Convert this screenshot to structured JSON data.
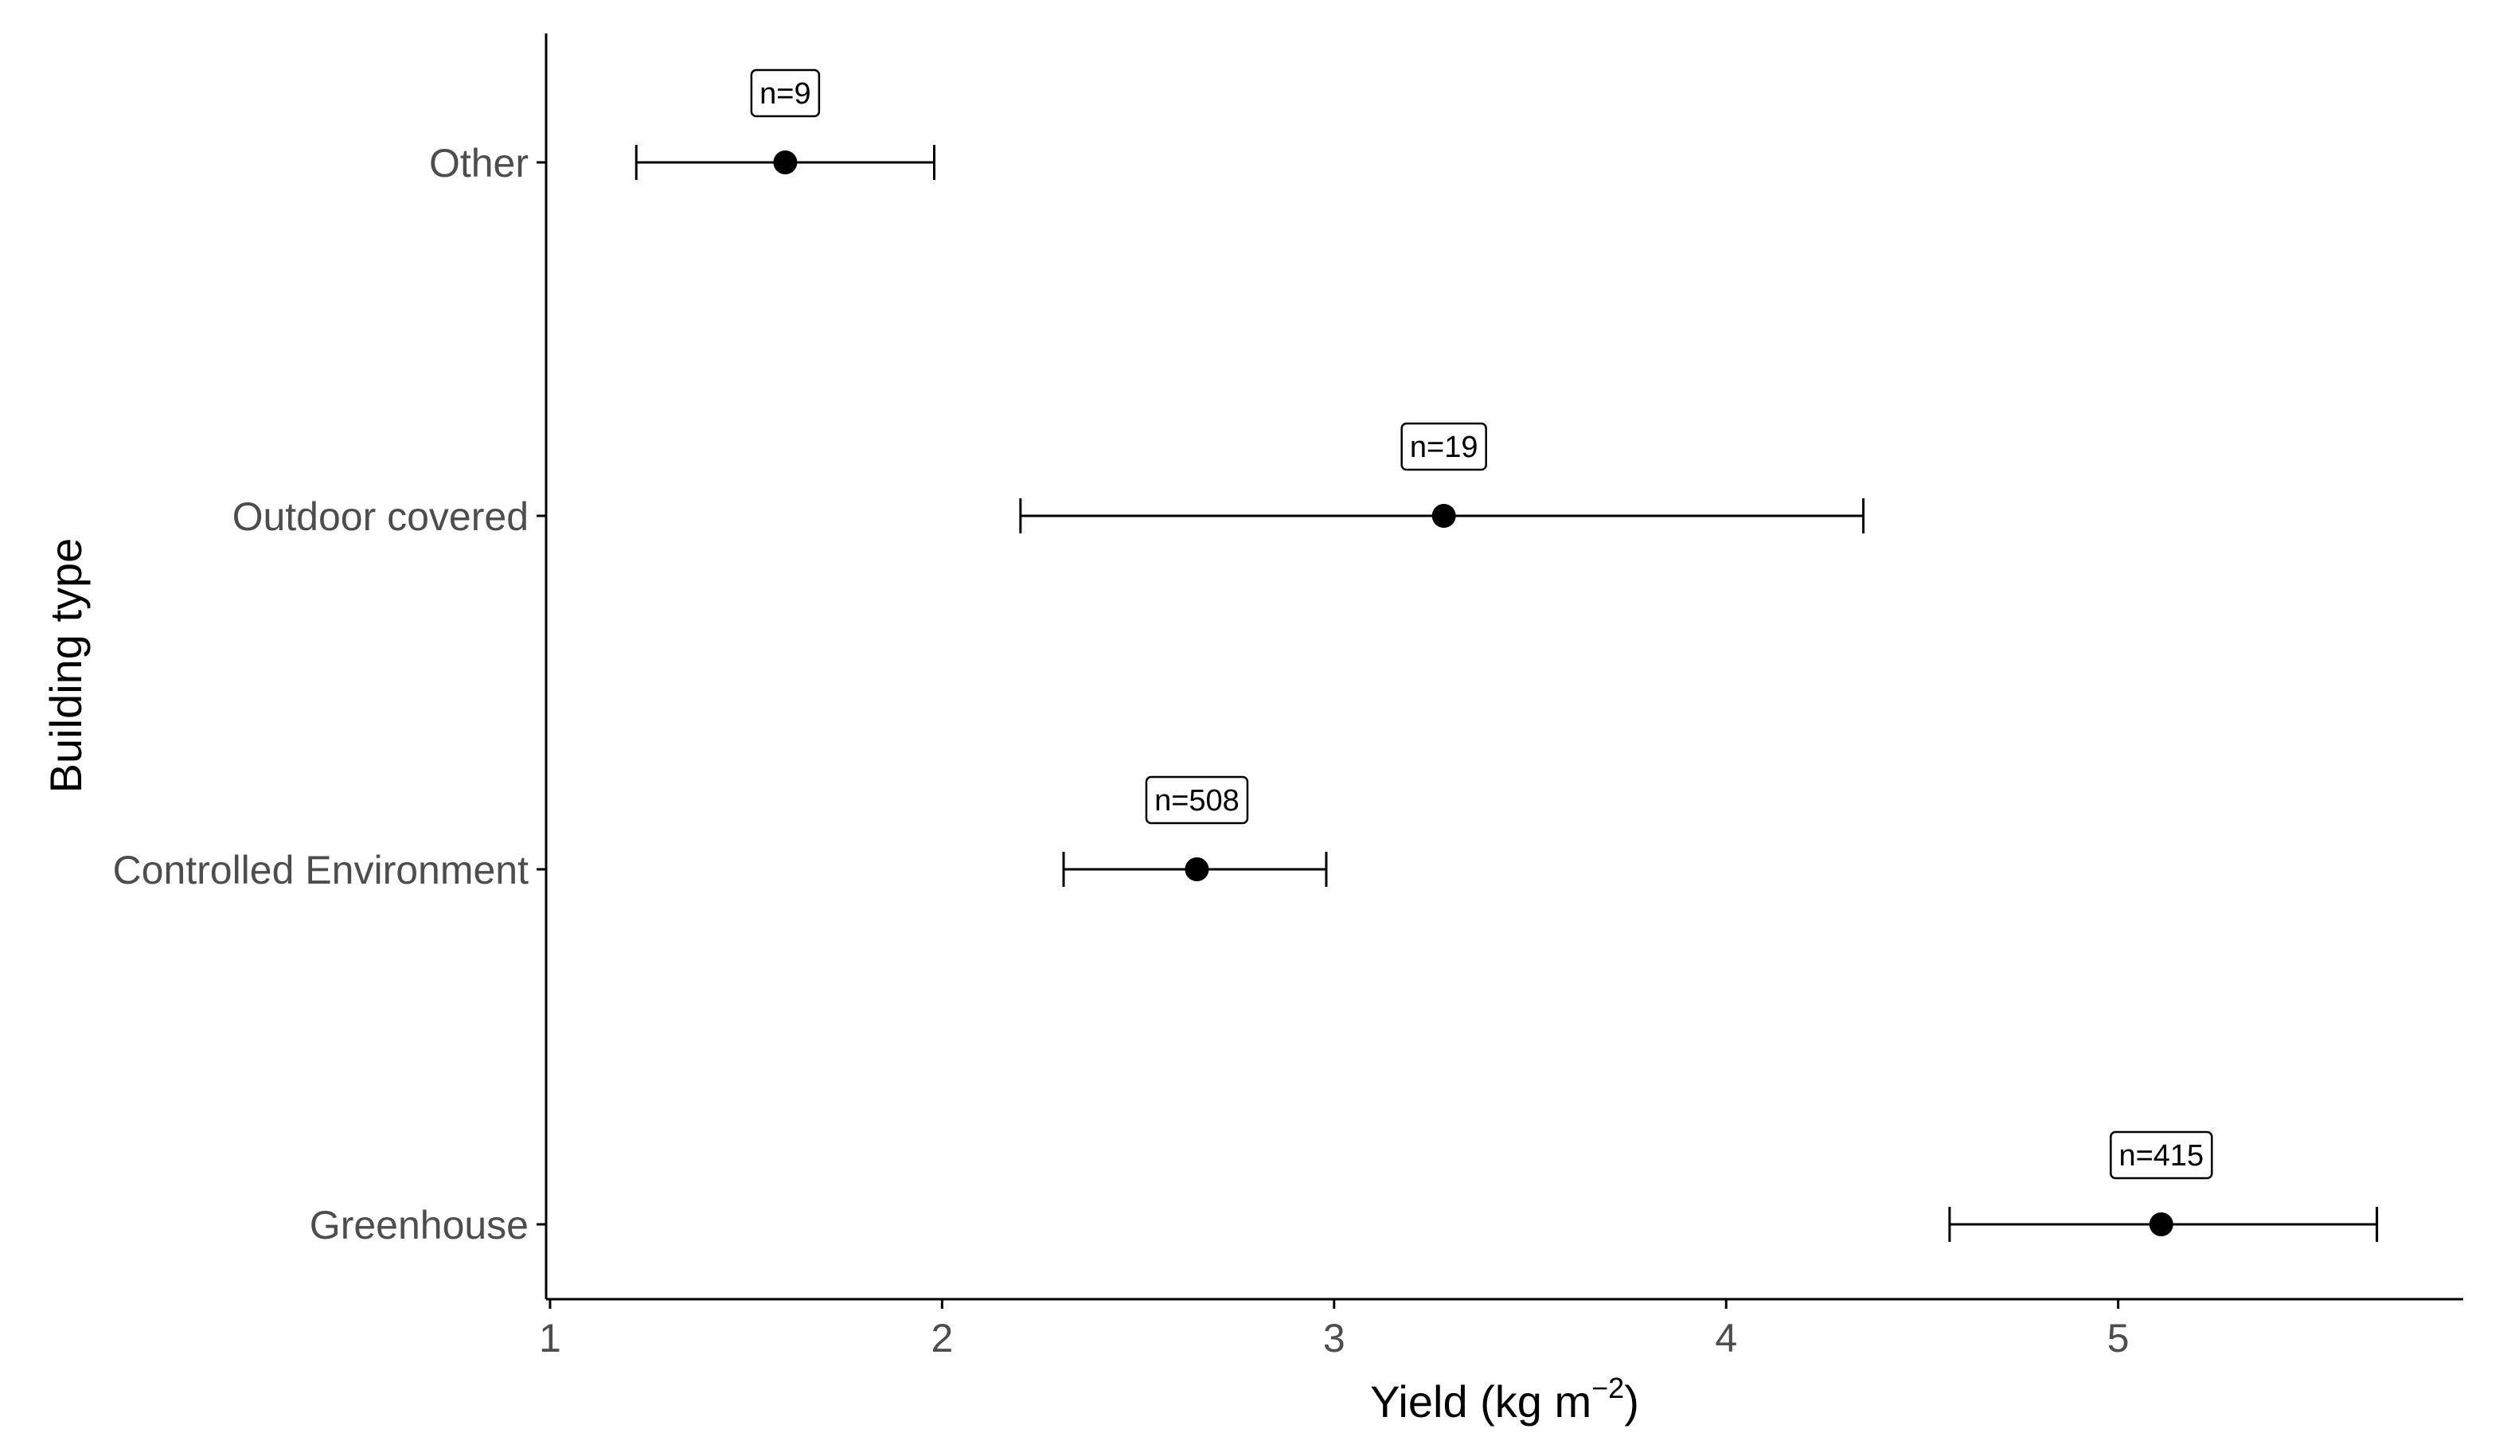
{
  "chart_data": {
    "type": "scatter",
    "subtype": "point-range",
    "title": "",
    "xlabel": "Yield (kg m",
    "xlabel_superscript": "−2",
    "xlabel_suffix": ")",
    "ylabel": "Building type",
    "xlim": [
      0.99,
      5.88
    ],
    "x_ticks": [
      1,
      2,
      3,
      4,
      5
    ],
    "x_tick_labels": [
      "1",
      "2",
      "3",
      "4",
      "5"
    ],
    "grid": false,
    "legend": "none",
    "categories": [
      "Other",
      "Outdoor covered",
      "Controlled Environment",
      "Greenhouse"
    ],
    "points": [
      {
        "category": "Other",
        "mean": 1.6,
        "lower": 1.22,
        "upper": 1.98,
        "n_label": "n=9"
      },
      {
        "category": "Outdoor covered",
        "mean": 3.28,
        "lower": 2.2,
        "upper": 4.35,
        "n_label": "n=19"
      },
      {
        "category": "Controlled Environment",
        "mean": 2.65,
        "lower": 2.31,
        "upper": 2.98,
        "n_label": "n=508"
      },
      {
        "category": "Greenhouse",
        "mean": 5.11,
        "lower": 4.57,
        "upper": 5.66,
        "n_label": "n=415"
      }
    ],
    "colors": {
      "point": "#000000",
      "axis": "#000000",
      "tick_label": "#4d4d4d",
      "background": "#ffffff"
    }
  }
}
